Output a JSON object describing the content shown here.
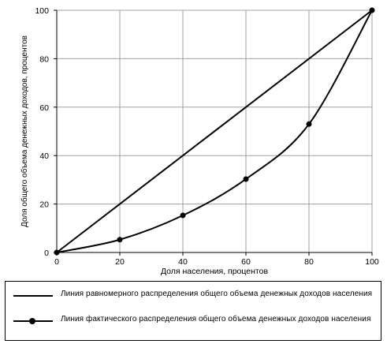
{
  "chart_data": {
    "type": "line",
    "title": "",
    "xlabel": "Доля населения, процентов",
    "ylabel": "Доля общего объема денежных доходов, процентов",
    "xlim": [
      0,
      100
    ],
    "ylim": [
      0,
      100
    ],
    "xticks": [
      "0",
      "20",
      "40",
      "60",
      "80",
      "100"
    ],
    "yticks": [
      "0",
      "20",
      "40",
      "60",
      "80",
      "100"
    ],
    "grid": true,
    "legend_position": "bottom",
    "series": [
      {
        "name": "Линия равномерного распределения общего объема денежнык доходов населения",
        "color": "#000000",
        "markers": false,
        "x": [
          0,
          100
        ],
        "y": [
          0,
          100
        ]
      },
      {
        "name": "Линия фактического распределения общего объема денежных доходов населения",
        "color": "#000000",
        "markers": true,
        "x": [
          0,
          20,
          40,
          60,
          80,
          100
        ],
        "y": [
          0,
          5.3,
          15.3,
          30.3,
          53,
          100
        ]
      }
    ]
  }
}
